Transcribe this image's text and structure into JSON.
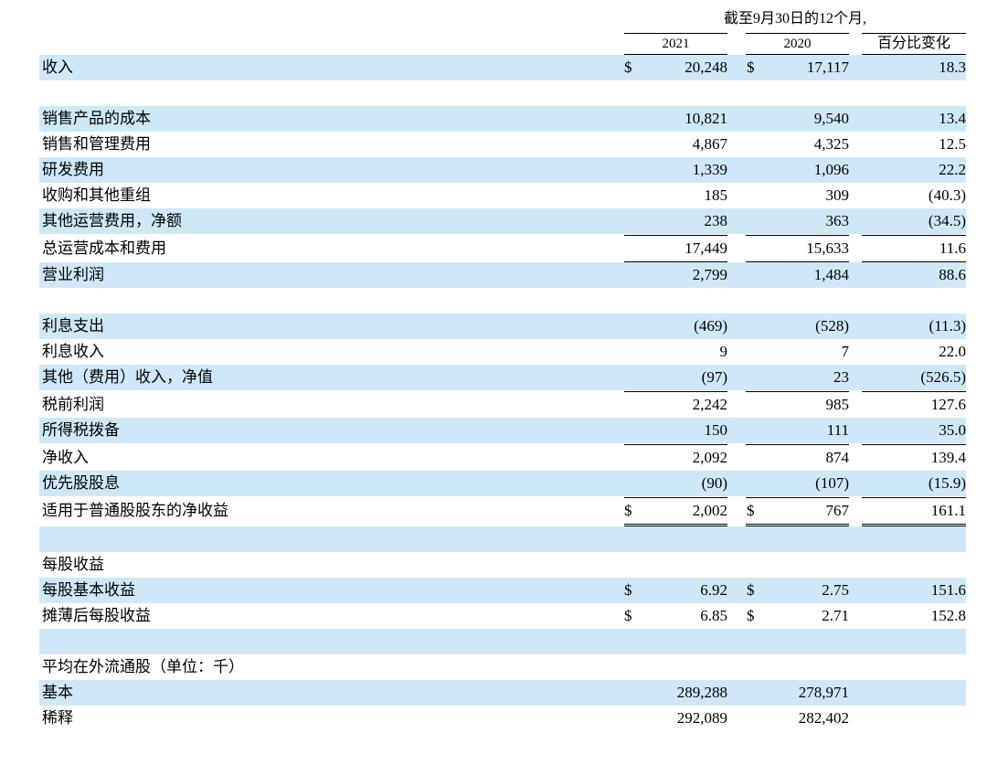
{
  "header": {
    "period": "截至9月30日的12个月,",
    "col_2021": "2021",
    "col_2020": "2020",
    "col_change": "百分比变化"
  },
  "currency": "$",
  "rows": [
    {
      "label": "收入",
      "v2021": "20,248",
      "v2020": "17,117",
      "change": "18.3"
    },
    {
      "label": "销售产品的成本",
      "v2021": "10,821",
      "v2020": "9,540",
      "change": "13.4"
    },
    {
      "label": "销售和管理费用",
      "v2021": "4,867",
      "v2020": "4,325",
      "change": "12.5"
    },
    {
      "label": "研发费用",
      "v2021": "1,339",
      "v2020": "1,096",
      "change": "22.2"
    },
    {
      "label": "收购和其他重组",
      "v2021": "185",
      "v2020": "309",
      "change": "(40.3)"
    },
    {
      "label": "其他运营费用，净额",
      "v2021": "238",
      "v2020": "363",
      "change": "(34.5)"
    },
    {
      "label": "总运营成本和费用",
      "v2021": "17,449",
      "v2020": "15,633",
      "change": "11.6"
    },
    {
      "label": "营业利润",
      "v2021": "2,799",
      "v2020": "1,484",
      "change": "88.6"
    },
    {
      "label": "利息支出",
      "v2021": "(469)",
      "v2020": "(528)",
      "change": "(11.3)"
    },
    {
      "label": "利息收入",
      "v2021": "9",
      "v2020": "7",
      "change": "22.0"
    },
    {
      "label": "其他（费用）收入，净值",
      "v2021": "(97)",
      "v2020": "23",
      "change": "(526.5)"
    },
    {
      "label": "税前利润",
      "v2021": "2,242",
      "v2020": "985",
      "change": "127.6"
    },
    {
      "label": "所得税拨备",
      "v2021": "150",
      "v2020": "111",
      "change": "35.0"
    },
    {
      "label": "净收入",
      "v2021": "2,092",
      "v2020": "874",
      "change": "139.4"
    },
    {
      "label": "优先股股息",
      "v2021": "(90)",
      "v2020": "(107)",
      "change": "(15.9)"
    },
    {
      "label": "适用于普通股股东的净收益",
      "v2021": "2,002",
      "v2020": "767",
      "change": "161.1"
    },
    {
      "label": "每股收益"
    },
    {
      "label": "每股基本收益",
      "v2021": "6.92",
      "v2020": "2.75",
      "change": "151.6"
    },
    {
      "label": "摊薄后每股收益",
      "v2021": "6.85",
      "v2020": "2.71",
      "change": "152.8"
    },
    {
      "label": "平均在外流通股（单位：千）"
    },
    {
      "label": "基本",
      "v2021": "289,288",
      "v2020": "278,971"
    },
    {
      "label": "稀释",
      "v2021": "292,089",
      "v2020": "282,402"
    }
  ]
}
